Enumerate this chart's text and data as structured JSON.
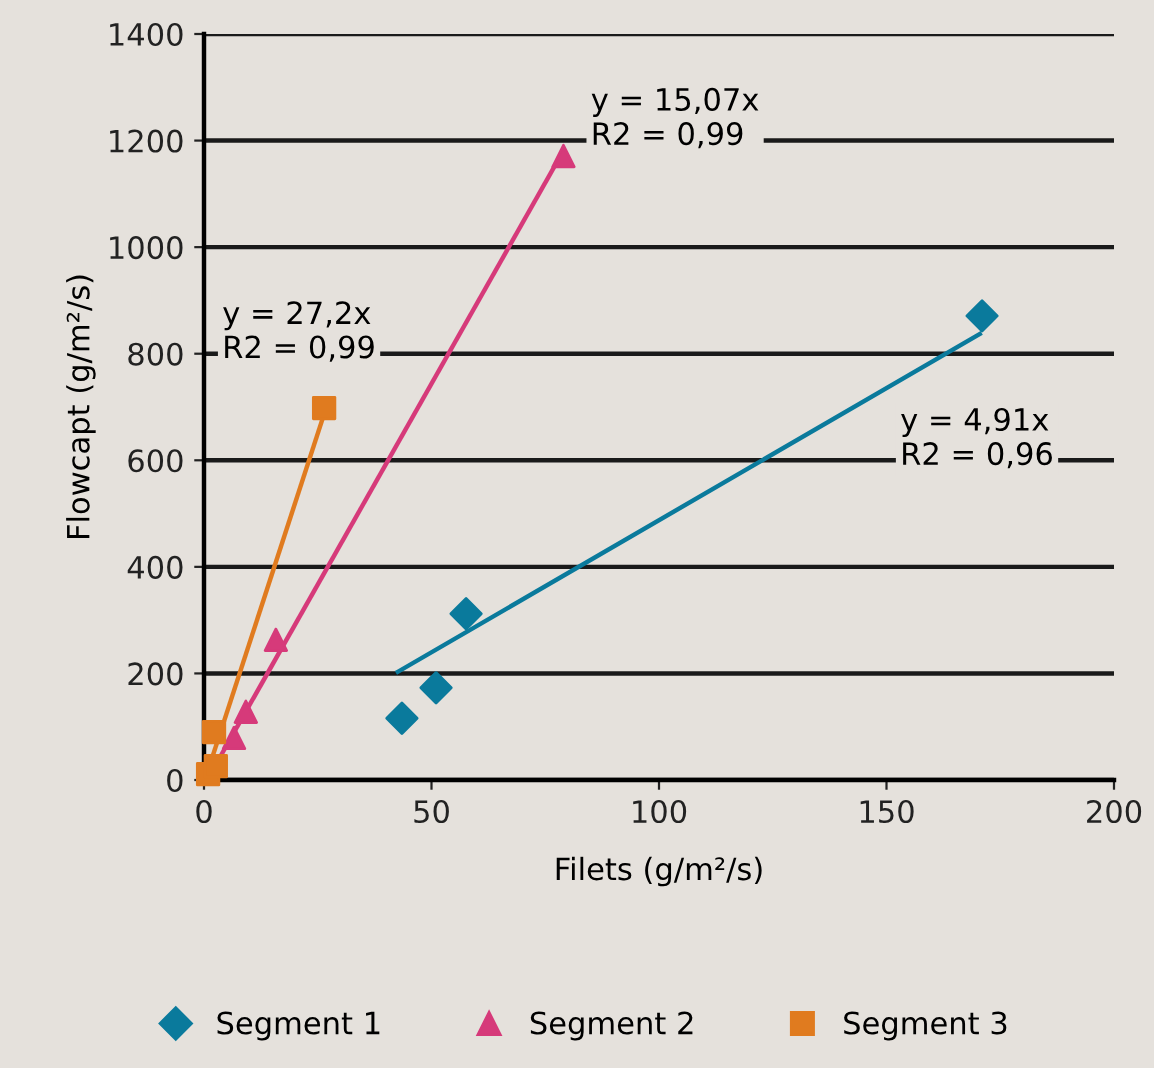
{
  "chart_data": {
    "type": "scatter",
    "xlabel": "Filets (g/m²/s)",
    "ylabel": "Flowcapt (g/m²/s)",
    "xlim": [
      0,
      200
    ],
    "xticks": [
      0,
      50,
      100,
      150,
      200
    ],
    "ylim": [
      0,
      1400
    ],
    "yticks": [
      0,
      200,
      400,
      600,
      800,
      1000,
      1200,
      1400
    ],
    "grid": "y",
    "legend": "bottom",
    "series": [
      {
        "name": "Segment 1",
        "color": "#0a7a9c",
        "marker": "diamond",
        "x": [
          43.5,
          51,
          57.6,
          171
        ],
        "values": [
          116,
          173,
          312,
          871
        ]
      },
      {
        "name": "Segment 2",
        "color": "#d63a7a",
        "marker": "triangle",
        "x": [
          6.6,
          9.2,
          15.8,
          79
        ],
        "values": [
          79,
          128,
          263,
          1171
        ]
      },
      {
        "name": "Segment 3",
        "color": "#e07b1f",
        "marker": "square",
        "x": [
          0.9,
          2.6,
          2.2,
          26.4
        ],
        "values": [
          11,
          26,
          90,
          698
        ]
      },
      {
        "type": "line",
        "color": "#0a7a9c",
        "x": [
          42.6,
          170.5
        ],
        "values": [
          203,
          837
        ]
      },
      {
        "type": "line",
        "color": "#d63a7a",
        "x": [
          2,
          78.6
        ],
        "values": [
          20,
          1175
        ]
      },
      {
        "type": "line",
        "color": "#e07b1f",
        "x": [
          0.5,
          26.4
        ],
        "values": [
          8,
          687
        ]
      }
    ],
    "annotations": [
      "y = 15,07x\nR2 = 0,99",
      "y = 27,2x\nR2 = 0,99",
      "y = 4,91x\nR2 = 0,96"
    ]
  }
}
